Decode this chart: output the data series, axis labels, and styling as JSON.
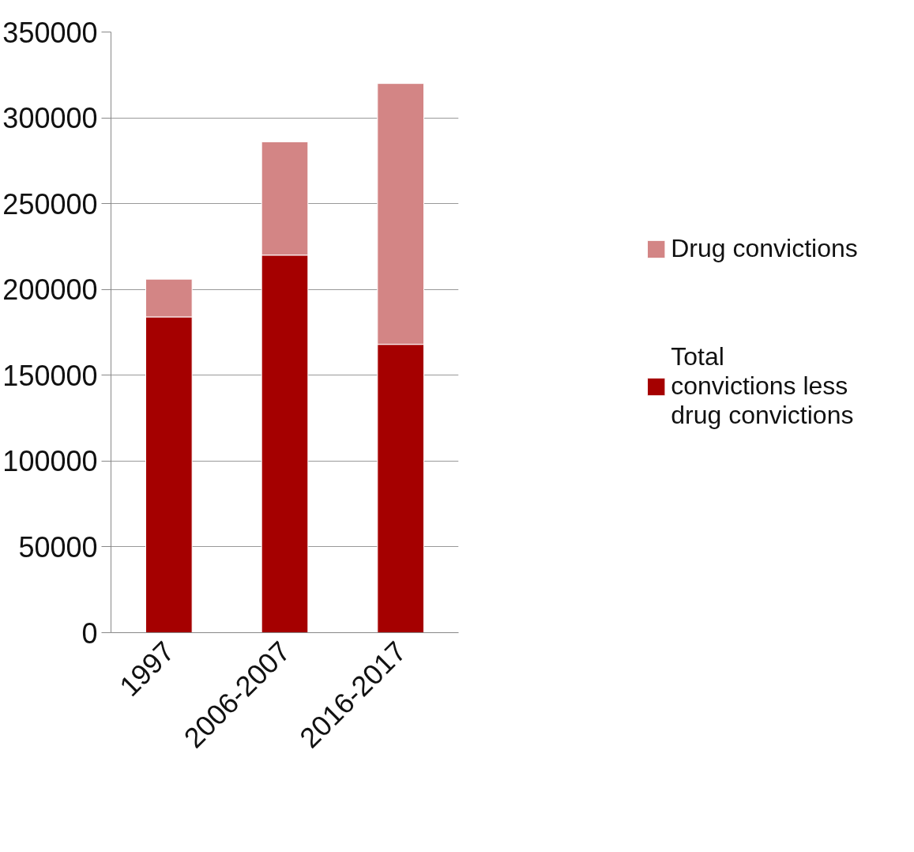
{
  "chart_data": {
    "type": "bar",
    "stacked": true,
    "categories": [
      "1997",
      "2006-2007",
      "2016-2017"
    ],
    "series": [
      {
        "name": "Total convictions less drug convictions",
        "color": "#a50000",
        "values": [
          184000,
          220000,
          168000
        ]
      },
      {
        "name": "Drug convictions",
        "color": "#d38585",
        "values": [
          22000,
          66000,
          152000
        ]
      }
    ],
    "ylim": [
      0,
      350000
    ],
    "yticks": [
      0,
      50000,
      100000,
      150000,
      200000,
      250000,
      300000,
      350000
    ],
    "grid": "y",
    "legend": "right"
  }
}
